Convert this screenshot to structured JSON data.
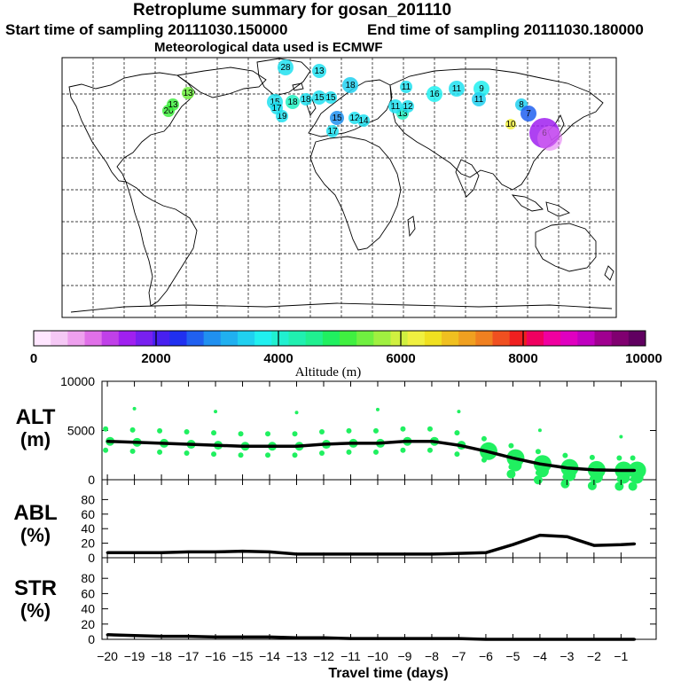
{
  "header": {
    "title": "Retroplume summary for gosan_201110",
    "start_label": "Start time of sampling 20111030.150000",
    "end_label": "End time of sampling 20111030.180000",
    "met_label": "Meteorological data used is ECMWF"
  },
  "colorbar": {
    "label": "Altitude (m)",
    "ticks": [
      "0",
      "2000",
      "4000",
      "6000",
      "8000",
      "10000"
    ],
    "min": 0,
    "max": 10000,
    "colors": [
      "#ffe6ff",
      "#f5c8f5",
      "#eea0ee",
      "#e070e8",
      "#c040e8",
      "#a020f0",
      "#7820f0",
      "#4820f0",
      "#2030f0",
      "#2060f0",
      "#2090f0",
      "#20b0f0",
      "#20d0f0",
      "#20f0f0",
      "#20f0d0",
      "#20f0b0",
      "#20f090",
      "#20f060",
      "#40f040",
      "#70f040",
      "#a0f040",
      "#d0f040",
      "#f0f040",
      "#f0e020",
      "#f0c020",
      "#f0a020",
      "#f08020",
      "#f05020",
      "#f02020",
      "#f00060",
      "#f000a0",
      "#e000c0",
      "#c000c0",
      "#a00090",
      "#800070",
      "#600060"
    ]
  },
  "map_labels": [
    "28",
    "13",
    "18",
    "15",
    "18",
    "15",
    "18",
    "13",
    "9",
    "19",
    "17",
    "11",
    "16",
    "13",
    "12",
    "20",
    "13",
    "15",
    "12",
    "11",
    "11",
    "10",
    "15",
    "14",
    "17",
    "11",
    "8",
    "7",
    "6"
  ],
  "chart_data": [
    {
      "type": "line",
      "panel": "ALT",
      "ylabel": "ALT (m)",
      "ylim": [
        0,
        10000
      ],
      "yticks": [
        "10000",
        "5000",
        "0"
      ],
      "x": [
        -20,
        -19,
        -18,
        -17,
        -16,
        -15,
        -14,
        -13,
        -12,
        -11,
        -10,
        -9,
        -8,
        -7,
        -6,
        -5,
        -4,
        -3,
        -2,
        -1,
        -0.5
      ],
      "values": [
        3900,
        3800,
        3700,
        3600,
        3500,
        3400,
        3400,
        3400,
        3600,
        3700,
        3700,
        3900,
        3900,
        3500,
        2900,
        2200,
        1600,
        1200,
        1000,
        950,
        950
      ]
    },
    {
      "type": "line",
      "panel": "ABL",
      "ylabel": "ABL (%)",
      "ylim": [
        0,
        100
      ],
      "yticks": [
        "80",
        "60",
        "40",
        "20",
        "0"
      ],
      "x": [
        -20,
        -19,
        -18,
        -17,
        -16,
        -15,
        -14,
        -13,
        -12,
        -11,
        -10,
        -9,
        -8,
        -7,
        -6,
        -5,
        -4,
        -3,
        -2,
        -1,
        -0.5
      ],
      "values": [
        7,
        7,
        7,
        8,
        8,
        9,
        8,
        5,
        5,
        5,
        5,
        5,
        5,
        6,
        7,
        18,
        31,
        29,
        17,
        18,
        19
      ]
    },
    {
      "type": "line",
      "panel": "STR",
      "ylabel": "STR (%)",
      "ylim": [
        0,
        100
      ],
      "yticks": [
        "80",
        "60",
        "40",
        "20",
        "0"
      ],
      "x": [
        -20,
        -19,
        -18,
        -17,
        -16,
        -15,
        -14,
        -13,
        -12,
        -11,
        -10,
        -9,
        -8,
        -7,
        -6,
        -5,
        -4,
        -3,
        -2,
        -1,
        -0.5
      ],
      "values": [
        6,
        5,
        4,
        4,
        3,
        3,
        3,
        2,
        2,
        1,
        1,
        1,
        1,
        1,
        0,
        0,
        0,
        0,
        0,
        0,
        0
      ]
    }
  ],
  "xaxis": {
    "label": "Travel time (days)",
    "ticks": [
      "−20",
      "−19",
      "−18",
      "−17",
      "−16",
      "−15",
      "−14",
      "−13",
      "−12",
      "−11",
      "−10",
      "−9",
      "−8",
      "−7",
      "−6",
      "−5",
      "−4",
      "−3",
      "−2",
      "−1"
    ]
  },
  "panel_labels": {
    "alt": "ALT",
    "alt_unit": "(m)",
    "abl": "ABL",
    "abl_unit": "(%)",
    "str": "STR",
    "str_unit": "(%)"
  }
}
